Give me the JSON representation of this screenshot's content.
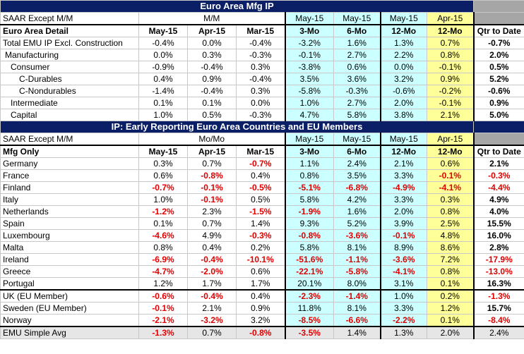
{
  "top_title": "Euro Area Mfg IP",
  "top_sub": {
    "label": "SAAR Except M/M",
    "mm": "M/M",
    "h1": "May-15",
    "h2": "May-15",
    "h3": "May-15",
    "h4": "Apr-15"
  },
  "top_hdr": {
    "label": "Euro Area Detail",
    "c": [
      "May-15",
      "Apr-15",
      "Mar-15",
      "3-Mo",
      "6-Mo",
      "12-Mo",
      "12-Mo",
      "Qtr to Date"
    ]
  },
  "top_rows": [
    {
      "label": "Total EMU IP Excl. Construction",
      "indent": 0,
      "v": [
        "-0.4%",
        "0.0%",
        "-0.4%",
        "-3.2%",
        "1.6%",
        "1.3%",
        "0.7%",
        "-0.7%"
      ]
    },
    {
      "label": "Manufacturing",
      "indent": 1,
      "v": [
        "0.0%",
        "0.3%",
        "-0.3%",
        "-0.1%",
        "2.7%",
        "2.2%",
        "0.8%",
        "2.0%"
      ]
    },
    {
      "label": "Consumer",
      "indent": 2,
      "v": [
        "-0.9%",
        "-0.4%",
        "0.3%",
        "-3.8%",
        "0.6%",
        "0.0%",
        "-0.1%",
        "0.5%"
      ]
    },
    {
      "label": "C-Durables",
      "indent": 3,
      "v": [
        "0.4%",
        "0.9%",
        "-0.4%",
        "3.5%",
        "3.6%",
        "3.2%",
        "0.9%",
        "5.2%"
      ]
    },
    {
      "label": "C-Nondurables",
      "indent": 3,
      "v": [
        "-1.4%",
        "-0.4%",
        "0.3%",
        "-5.8%",
        "-0.3%",
        "-0.6%",
        "-0.2%",
        "-0.6%"
      ]
    },
    {
      "label": "Intermediate",
      "indent": 2,
      "v": [
        "0.1%",
        "0.1%",
        "0.0%",
        "1.0%",
        "2.7%",
        "2.0%",
        "-0.1%",
        "0.9%"
      ]
    },
    {
      "label": "Capital",
      "indent": 2,
      "v": [
        "1.0%",
        "0.5%",
        "-0.3%",
        "4.7%",
        "5.8%",
        "3.8%",
        "2.1%",
        "5.0%"
      ]
    }
  ],
  "bottom_title": "IP: Early Reporting Euro Area Countries and EU Members",
  "bottom_sub": {
    "label": "SAAR Except M/M",
    "mm": "Mo/Mo",
    "h1": "May-15",
    "h2": "May-15",
    "h3": "May-15",
    "h4": "Apr-15"
  },
  "bottom_hdr": {
    "label": "Mfg Only",
    "c": [
      "May-15",
      "Apr-15",
      "Mar-15",
      "3-Mo",
      "6-Mo",
      "12-Mo",
      "12-Mo",
      "Qtr to Date"
    ]
  },
  "countries": [
    {
      "label": "Germany",
      "v": [
        "0.3%",
        "0.7%",
        "-0.7%",
        "1.1%",
        "2.4%",
        "2.1%",
        "0.6%",
        "2.1%"
      ]
    },
    {
      "label": "France",
      "v": [
        "0.6%",
        "-0.8%",
        "0.4%",
        "0.8%",
        "3.5%",
        "3.3%",
        "-0.1%",
        "-0.3%"
      ]
    },
    {
      "label": "Finland",
      "v": [
        "-0.7%",
        "-0.1%",
        "-0.5%",
        "-5.1%",
        "-6.8%",
        "-4.9%",
        "-4.1%",
        "-4.4%"
      ]
    },
    {
      "label": "Italy",
      "v": [
        "1.0%",
        "-0.1%",
        "0.5%",
        "5.8%",
        "4.2%",
        "3.3%",
        "0.3%",
        "4.9%"
      ]
    },
    {
      "label": "Netherlands",
      "v": [
        "-1.2%",
        "2.3%",
        "-1.5%",
        "-1.9%",
        "1.6%",
        "2.0%",
        "0.8%",
        "4.0%"
      ]
    },
    {
      "label": "Spain",
      "v": [
        "0.1%",
        "0.7%",
        "1.4%",
        "9.3%",
        "5.2%",
        "3.9%",
        "2.5%",
        "15.5%"
      ]
    },
    {
      "label": "Luxembourg",
      "v": [
        "-4.6%",
        "4.9%",
        "-0.3%",
        "-0.8%",
        "-3.6%",
        "-0.1%",
        "4.8%",
        "16.0%"
      ]
    },
    {
      "label": "Malta",
      "v": [
        "0.8%",
        "0.4%",
        "0.2%",
        "5.8%",
        "8.1%",
        "8.9%",
        "8.6%",
        "2.8%"
      ]
    },
    {
      "label": "Ireland",
      "v": [
        "-6.9%",
        "-0.4%",
        "-10.1%",
        "-51.6%",
        "-1.1%",
        "-3.6%",
        "7.2%",
        "-17.9%"
      ]
    },
    {
      "label": "Greece",
      "v": [
        "-4.7%",
        "-2.0%",
        "0.6%",
        "-22.1%",
        "-5.8%",
        "-4.1%",
        "0.8%",
        "-13.0%"
      ]
    },
    {
      "label": "Portugal",
      "v": [
        "1.2%",
        "1.7%",
        "1.7%",
        "20.1%",
        "8.0%",
        "3.1%",
        "0.1%",
        "16.3%"
      ]
    }
  ],
  "eu_members": [
    {
      "label": "UK (EU Member)",
      "v": [
        "-0.6%",
        "-0.4%",
        "0.4%",
        "-2.3%",
        "-1.4%",
        "1.0%",
        "0.2%",
        "-1.3%"
      ]
    },
    {
      "label": "Sweden (EU Member)",
      "v": [
        "-0.1%",
        "2.1%",
        "0.9%",
        "11.8%",
        "8.1%",
        "3.3%",
        "1.2%",
        "15.7%"
      ]
    },
    {
      "label": "Norway",
      "v": [
        "-2.1%",
        "-3.2%",
        "3.2%",
        "-8.5%",
        "-6.6%",
        "-2.2%",
        "0.1%",
        "-8.4%"
      ]
    }
  ],
  "avg": {
    "label": "EMU Simple Avg",
    "v": [
      "-1.3%",
      "0.7%",
      "-0.8%",
      "-3.5%",
      "1.4%",
      "1.3%",
      "2.0%",
      "2.4%"
    ]
  },
  "colors": {
    "navy": "#0b1f66",
    "cyan": "#ccffff",
    "yellow": "#ffff99",
    "gray": "#a6a6a6",
    "negative": "#e00000"
  }
}
